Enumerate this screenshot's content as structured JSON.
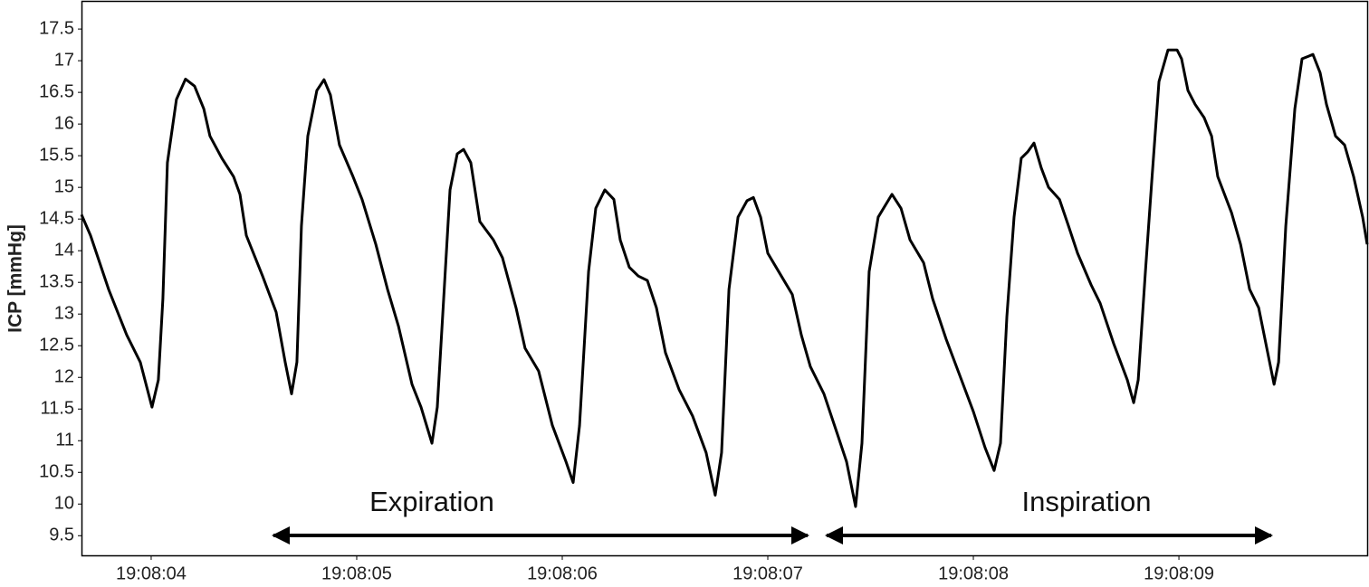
{
  "chart_data": {
    "type": "line",
    "y_label": "ICP [mmHg]",
    "annotations": [
      "Expiration",
      "Inspiration"
    ],
    "color": "#000000",
    "x": [
      3.661,
      3.705,
      3.793,
      3.881,
      3.947,
      4.004,
      4.035,
      4.057,
      4.079,
      4.123,
      4.167,
      4.211,
      4.256,
      4.286,
      4.344,
      4.401,
      4.432,
      4.463,
      4.542,
      4.608,
      4.652,
      4.683,
      4.709,
      4.731,
      4.762,
      4.806,
      4.841,
      4.872,
      4.916,
      4.982,
      5.026,
      5.093,
      5.15,
      5.203,
      5.269,
      5.313,
      5.366,
      5.392,
      5.423,
      5.454,
      5.489,
      5.52,
      5.555,
      5.599,
      5.665,
      5.709,
      5.775,
      5.819,
      5.885,
      5.952,
      6.018,
      6.053,
      6.084,
      6.128,
      6.163,
      6.207,
      6.251,
      6.282,
      6.326,
      6.37,
      6.414,
      6.458,
      6.502,
      6.568,
      6.634,
      6.7,
      6.744,
      6.775,
      6.811,
      6.855,
      6.899,
      6.93,
      6.965,
      7.0,
      7.053,
      7.119,
      7.163,
      7.207,
      7.273,
      7.339,
      7.383,
      7.427,
      7.458,
      7.493,
      7.537,
      7.604,
      7.648,
      7.692,
      7.758,
      7.802,
      7.868,
      7.934,
      8.0,
      8.057,
      8.101,
      8.132,
      8.163,
      8.198,
      8.233,
      8.264,
      8.295,
      8.33,
      8.366,
      8.419,
      8.463,
      8.507,
      8.573,
      8.617,
      8.683,
      8.749,
      8.78,
      8.802,
      8.837,
      8.868,
      8.903,
      8.947,
      8.991,
      9.013,
      9.044,
      9.079,
      9.123,
      9.159,
      9.189,
      9.256,
      9.3,
      9.344,
      9.388,
      9.432,
      9.463,
      9.485,
      9.52,
      9.564,
      9.599,
      9.63,
      9.652,
      9.687,
      9.718,
      9.762,
      9.806,
      9.85,
      9.894,
      9.916
    ],
    "values": [
      14.57,
      14.24,
      13.39,
      12.67,
      12.24,
      11.53,
      11.96,
      13.24,
      15.39,
      16.39,
      16.71,
      16.6,
      16.24,
      15.81,
      15.46,
      15.17,
      14.89,
      14.24,
      13.6,
      13.03,
      12.24,
      11.74,
      12.24,
      14.39,
      15.81,
      16.53,
      16.7,
      16.46,
      15.67,
      15.17,
      14.81,
      14.1,
      13.39,
      12.81,
      11.89,
      11.53,
      10.96,
      11.53,
      13.24,
      14.96,
      15.53,
      15.6,
      15.39,
      14.46,
      14.17,
      13.89,
      13.1,
      12.46,
      12.1,
      11.24,
      10.67,
      10.34,
      11.24,
      13.67,
      14.67,
      14.96,
      14.81,
      14.17,
      13.74,
      13.6,
      13.53,
      13.1,
      12.39,
      11.81,
      11.39,
      10.81,
      10.14,
      10.81,
      13.39,
      14.53,
      14.79,
      14.84,
      14.53,
      13.96,
      13.67,
      13.31,
      12.67,
      12.17,
      11.74,
      11.1,
      10.67,
      9.96,
      10.96,
      13.67,
      14.53,
      14.89,
      14.67,
      14.17,
      13.81,
      13.24,
      12.6,
      12.03,
      11.46,
      10.89,
      10.53,
      10.96,
      12.96,
      14.53,
      15.46,
      15.56,
      15.7,
      15.31,
      15.0,
      14.81,
      14.39,
      13.96,
      13.46,
      13.17,
      12.53,
      11.96,
      11.6,
      11.96,
      13.67,
      15.1,
      16.67,
      17.17,
      17.17,
      17.03,
      16.53,
      16.31,
      16.1,
      15.81,
      15.17,
      14.6,
      14.1,
      13.39,
      13.1,
      12.39,
      11.89,
      12.24,
      14.39,
      16.24,
      17.03,
      17.07,
      17.1,
      16.81,
      16.31,
      15.81,
      15.67,
      15.17,
      14.53,
      14.1
    ],
    "xlim": [
      3.661,
      9.916
    ],
    "xticks": [
      {
        "value": 4,
        "label": "19:08:04"
      },
      {
        "value": 5,
        "label": "19:08:05"
      },
      {
        "value": 6,
        "label": "19:08:06"
      },
      {
        "value": 7,
        "label": "19:08:07"
      },
      {
        "value": 8,
        "label": "19:08:08"
      },
      {
        "value": 9,
        "label": "19:08:09"
      }
    ],
    "ylim": [
      9.19,
      17.93
    ],
    "yticks": [
      9.5,
      10,
      10.5,
      11,
      11.5,
      12,
      12.5,
      13,
      13.5,
      14,
      14.5,
      15,
      15.5,
      16,
      16.5,
      17,
      17.5
    ],
    "grid": false
  }
}
